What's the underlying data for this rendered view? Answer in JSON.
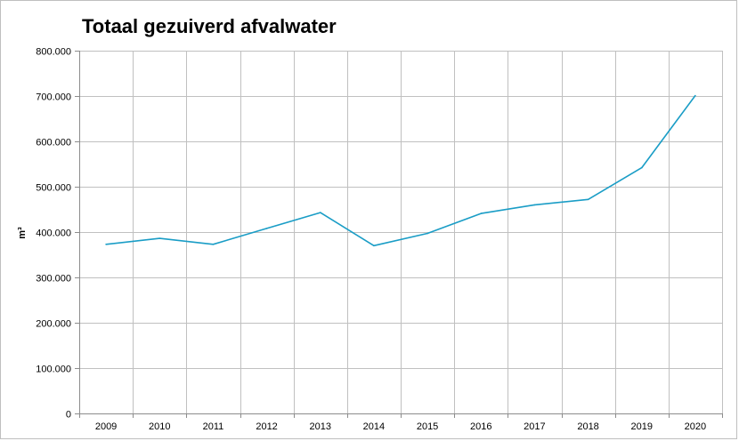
{
  "chart_data": {
    "type": "line",
    "title": "Totaal gezuiverd afvalwater",
    "xlabel": "",
    "ylabel": "m³",
    "categories": [
      "2009",
      "2010",
      "2011",
      "2012",
      "2013",
      "2014",
      "2015",
      "2016",
      "2017",
      "2018",
      "2019",
      "2020"
    ],
    "series": [
      {
        "values": [
          373000,
          386000,
          373000,
          408000,
          443000,
          370000,
          397000,
          441000,
          460000,
          472000,
          542000,
          701000
        ]
      }
    ],
    "ylim": [
      0,
      800000
    ],
    "yticks": [
      0,
      100000,
      200000,
      300000,
      400000,
      500000,
      600000,
      700000,
      800000
    ],
    "ytick_labels": [
      "0",
      "100.000",
      "200.000",
      "300.000",
      "400.000",
      "500.000",
      "600.000",
      "700.000",
      "800.000"
    ],
    "grid": true,
    "legend": "none",
    "colors": {
      "line": "#1a9dc6",
      "grid": "#c0c0c0",
      "axis": "#8c8c8c"
    }
  }
}
